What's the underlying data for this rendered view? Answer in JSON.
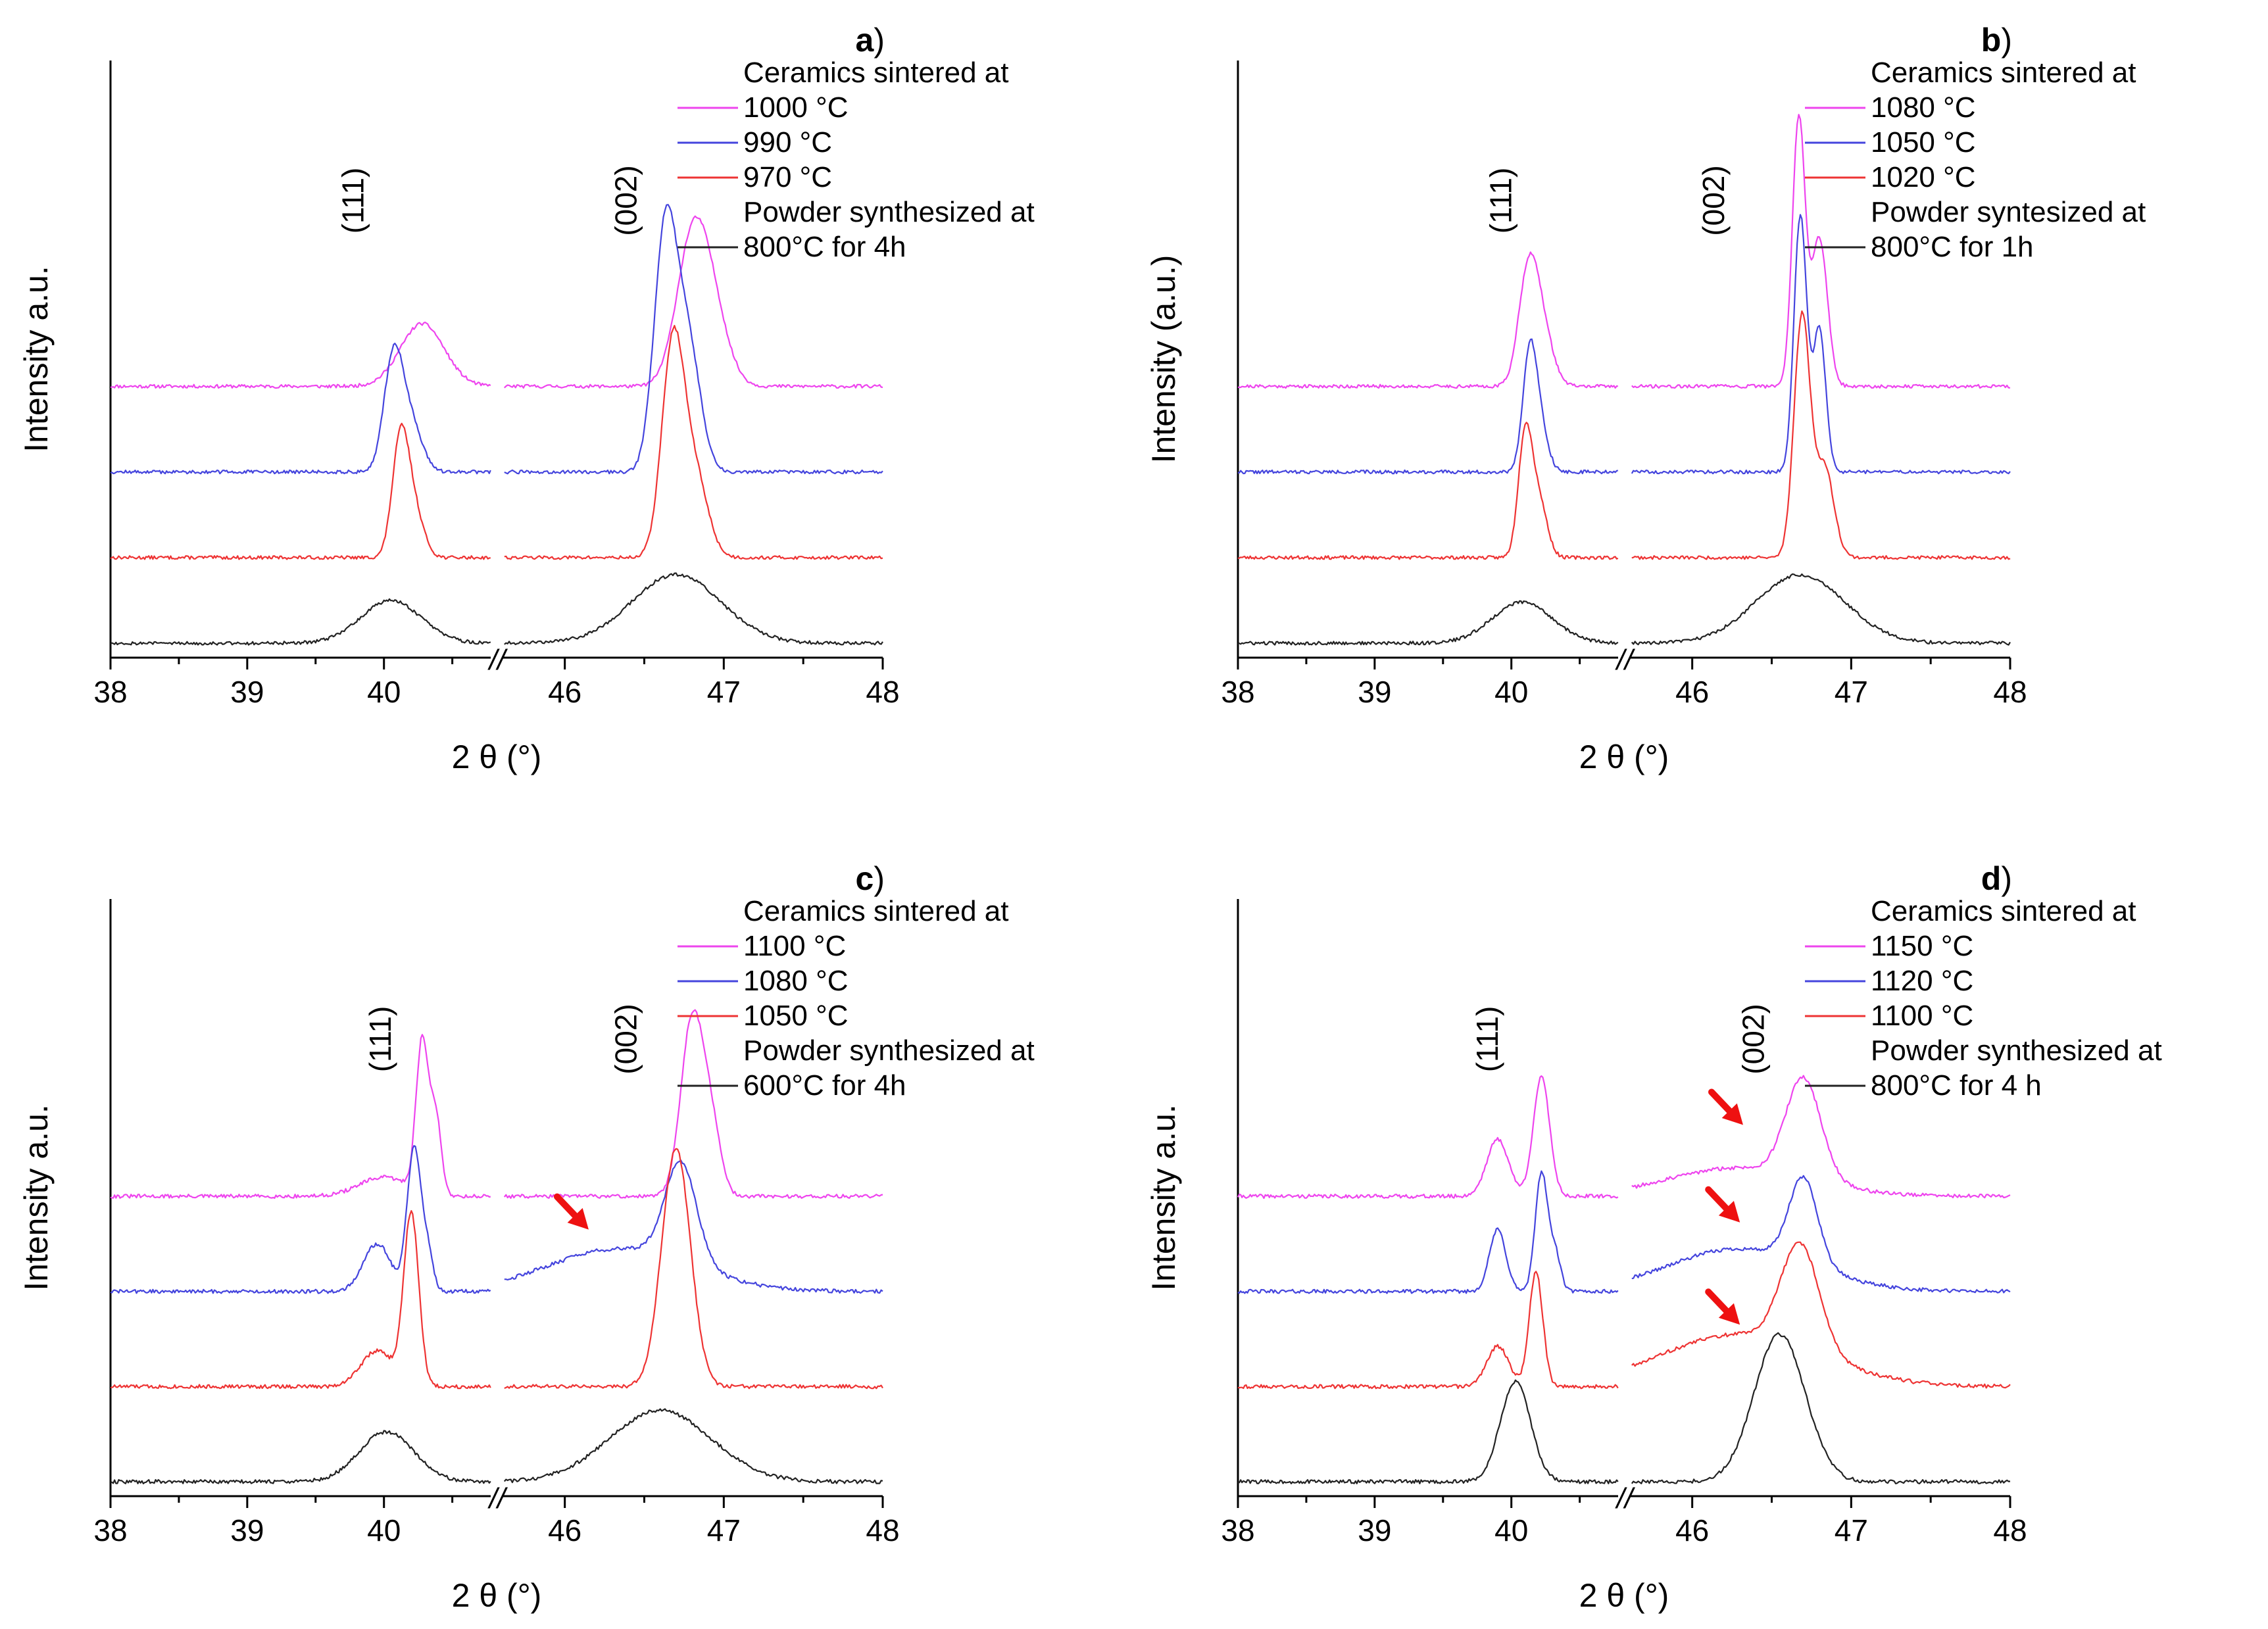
{
  "figure": {
    "axis_break_marker": "//"
  },
  "colors": {
    "magenta": "#ee44ee",
    "blue": "#4444dd",
    "red": "#ee3333",
    "black": "#222222",
    "arrow": "#ee1111"
  },
  "chart_data": [
    {
      "panel": "a",
      "panel_letter": "a",
      "type": "line",
      "xlabel": "2 θ (°)",
      "ylabel": "Intensity a.u.",
      "x_segments": [
        {
          "range": [
            38,
            40.8
          ],
          "ticks": [
            38,
            39,
            40
          ]
        },
        {
          "range": [
            45.6,
            48
          ],
          "ticks": [
            46,
            47,
            48
          ]
        }
      ],
      "y_range": [
        0,
        10
      ],
      "legend": {
        "header": "Ceramics sintered at",
        "sub_header": "Powder synthesized at"
      },
      "peak_labels": [
        {
          "text": "(111)",
          "x": 39.85
        },
        {
          "text": "(002)",
          "x": 46.45
        }
      ],
      "arrows": [],
      "series": [
        {
          "name": "1000 °C",
          "color": "magenta",
          "baseline": 4.5,
          "noise": 0.03,
          "seed": 11,
          "peaks": [
            {
              "x": 40.28,
              "h": 1.1,
              "w": 0.16
            },
            {
              "x": 46.8,
              "h": 2.4,
              "w": 0.1
            },
            {
              "x": 46.93,
              "h": 1.1,
              "w": 0.1
            }
          ]
        },
        {
          "name": "990 °C",
          "color": "blue",
          "baseline": 3.0,
          "noise": 0.03,
          "seed": 12,
          "peaks": [
            {
              "x": 40.07,
              "h": 2.0,
              "w": 0.07
            },
            {
              "x": 40.2,
              "h": 0.8,
              "w": 0.08
            },
            {
              "x": 46.63,
              "h": 4.1,
              "w": 0.07
            },
            {
              "x": 46.77,
              "h": 2.3,
              "w": 0.08
            }
          ]
        },
        {
          "name": "970 °C",
          "color": "red",
          "baseline": 1.5,
          "noise": 0.03,
          "seed": 13,
          "peaks": [
            {
              "x": 40.12,
              "h": 2.0,
              "w": 0.06
            },
            {
              "x": 40.22,
              "h": 0.8,
              "w": 0.07
            },
            {
              "x": 46.68,
              "h": 3.7,
              "w": 0.07
            },
            {
              "x": 46.82,
              "h": 1.4,
              "w": 0.08
            }
          ]
        },
        {
          "name": "800°C for 4h",
          "color": "black",
          "baseline": 0.0,
          "noise": 0.03,
          "seed": 14,
          "peaks": [
            {
              "x": 40.05,
              "h": 0.75,
              "w": 0.22
            },
            {
              "x": 46.7,
              "h": 1.2,
              "w": 0.28
            }
          ]
        }
      ]
    },
    {
      "panel": "b",
      "panel_letter": "b",
      "type": "line",
      "xlabel": "2 θ (°)",
      "ylabel": "Intensity (a.u.)",
      "x_segments": [
        {
          "range": [
            38,
            40.8
          ],
          "ticks": [
            38,
            39,
            40
          ]
        },
        {
          "range": [
            45.6,
            48
          ],
          "ticks": [
            46,
            47,
            48
          ]
        }
      ],
      "y_range": [
        0,
        10
      ],
      "legend": {
        "header": "Ceramics sintered at",
        "sub_header": "Powder syntesized at"
      },
      "peak_labels": [
        {
          "text": "(111)",
          "x": 40.0
        },
        {
          "text": "(002)",
          "x": 46.2
        }
      ],
      "arrows": [],
      "series": [
        {
          "name": "1080 °C",
          "color": "magenta",
          "baseline": 4.5,
          "noise": 0.03,
          "seed": 21,
          "peaks": [
            {
              "x": 40.12,
              "h": 1.8,
              "w": 0.07
            },
            {
              "x": 40.22,
              "h": 1.0,
              "w": 0.08
            },
            {
              "x": 46.67,
              "h": 4.7,
              "w": 0.04
            },
            {
              "x": 46.8,
              "h": 2.6,
              "w": 0.05
            }
          ]
        },
        {
          "name": "1050 °C",
          "color": "blue",
          "baseline": 3.0,
          "noise": 0.03,
          "seed": 22,
          "peaks": [
            {
              "x": 40.13,
              "h": 1.8,
              "w": 0.05
            },
            {
              "x": 40.2,
              "h": 0.9,
              "w": 0.06
            },
            {
              "x": 46.68,
              "h": 4.5,
              "w": 0.04
            },
            {
              "x": 46.8,
              "h": 2.5,
              "w": 0.04
            }
          ]
        },
        {
          "name": "1020 °C",
          "color": "red",
          "baseline": 1.5,
          "noise": 0.03,
          "seed": 23,
          "peaks": [
            {
              "x": 40.1,
              "h": 2.1,
              "w": 0.05
            },
            {
              "x": 40.2,
              "h": 1.0,
              "w": 0.06
            },
            {
              "x": 46.69,
              "h": 4.2,
              "w": 0.05
            },
            {
              "x": 46.83,
              "h": 1.6,
              "w": 0.06
            }
          ]
        },
        {
          "name": "800°C for 1h",
          "color": "black",
          "baseline": 0.0,
          "noise": 0.03,
          "seed": 24,
          "peaks": [
            {
              "x": 40.08,
              "h": 0.72,
              "w": 0.22
            },
            {
              "x": 46.68,
              "h": 1.2,
              "w": 0.28
            }
          ]
        }
      ]
    },
    {
      "panel": "c",
      "panel_letter": "c",
      "type": "line",
      "xlabel": "2 θ (°)",
      "ylabel": "Intensity a.u.",
      "x_segments": [
        {
          "range": [
            38,
            40.8
          ],
          "ticks": [
            38,
            39,
            40
          ]
        },
        {
          "range": [
            45.6,
            48
          ],
          "ticks": [
            46,
            47,
            48
          ]
        }
      ],
      "y_range": [
        0,
        12
      ],
      "legend": {
        "header": "Ceramics sintered at",
        "sub_header": "Powder synthesized at"
      },
      "peak_labels": [
        {
          "text": "(111)",
          "x": 40.05
        },
        {
          "text": "(002)",
          "x": 46.45
        }
      ],
      "arrows": [
        {
          "x": 46.15,
          "y": 5.3
        }
      ],
      "series": [
        {
          "name": "1100 °C",
          "color": "magenta",
          "baseline": 6.0,
          "noise": 0.04,
          "seed": 31,
          "peaks": [
            {
              "x": 40.0,
              "h": 0.4,
              "w": 0.18
            },
            {
              "x": 40.28,
              "h": 3.2,
              "w": 0.045
            },
            {
              "x": 40.38,
              "h": 1.6,
              "w": 0.04
            },
            {
              "x": 46.8,
              "h": 3.7,
              "w": 0.07
            },
            {
              "x": 46.92,
              "h": 1.4,
              "w": 0.06
            }
          ]
        },
        {
          "name": "1080 °C",
          "color": "blue",
          "baseline": 4.0,
          "noise": 0.04,
          "seed": 32,
          "peaks": [
            {
              "x": 39.95,
              "h": 1.0,
              "w": 0.1
            },
            {
              "x": 40.22,
              "h": 3.0,
              "w": 0.05
            },
            {
              "x": 40.32,
              "h": 0.8,
              "w": 0.04
            },
            {
              "x": 46.35,
              "h": 0.9,
              "w": 0.45
            },
            {
              "x": 46.73,
              "h": 2.1,
              "w": 0.1
            }
          ]
        },
        {
          "name": "1050 °C",
          "color": "red",
          "baseline": 2.0,
          "noise": 0.04,
          "seed": 33,
          "peaks": [
            {
              "x": 39.95,
              "h": 0.75,
              "w": 0.12
            },
            {
              "x": 40.2,
              "h": 3.6,
              "w": 0.055
            },
            {
              "x": 46.7,
              "h": 5.0,
              "w": 0.09
            }
          ]
        },
        {
          "name": "600°C for 4h",
          "color": "black",
          "baseline": 0.0,
          "noise": 0.04,
          "seed": 34,
          "peaks": [
            {
              "x": 40.02,
              "h": 1.05,
              "w": 0.2
            },
            {
              "x": 46.6,
              "h": 1.5,
              "w": 0.32
            }
          ]
        }
      ]
    },
    {
      "panel": "d",
      "panel_letter": "d",
      "type": "line",
      "xlabel": "2 θ (°)",
      "ylabel": "Intensity a.u.",
      "x_segments": [
        {
          "range": [
            38,
            40.8
          ],
          "ticks": [
            38,
            39,
            40
          ]
        },
        {
          "range": [
            45.6,
            48
          ],
          "ticks": [
            46,
            47,
            48
          ]
        }
      ],
      "y_range": [
        0,
        12
      ],
      "legend": {
        "header": "Ceramics sintered at",
        "sub_header": "Powder synthesized at"
      },
      "peak_labels": [
        {
          "text": "(111)",
          "x": 39.9
        },
        {
          "text": "(002)",
          "x": 46.45
        }
      ],
      "arrows": [
        {
          "x": 46.32,
          "y": 7.5
        },
        {
          "x": 46.3,
          "y": 5.45
        },
        {
          "x": 46.3,
          "y": 3.3
        }
      ],
      "series": [
        {
          "name": "1150 °C",
          "color": "magenta",
          "baseline": 6.0,
          "noise": 0.04,
          "seed": 41,
          "peaks": [
            {
              "x": 39.9,
              "h": 1.2,
              "w": 0.08
            },
            {
              "x": 40.22,
              "h": 2.5,
              "w": 0.06
            },
            {
              "x": 46.3,
              "h": 0.6,
              "w": 0.45
            },
            {
              "x": 46.7,
              "h": 2.1,
              "w": 0.11
            }
          ]
        },
        {
          "name": "1120 °C",
          "color": "blue",
          "baseline": 4.0,
          "noise": 0.04,
          "seed": 42,
          "peaks": [
            {
              "x": 39.9,
              "h": 1.3,
              "w": 0.06
            },
            {
              "x": 40.22,
              "h": 2.5,
              "w": 0.045
            },
            {
              "x": 40.32,
              "h": 0.8,
              "w": 0.04
            },
            {
              "x": 46.3,
              "h": 0.9,
              "w": 0.45
            },
            {
              "x": 46.7,
              "h": 1.8,
              "w": 0.09
            }
          ]
        },
        {
          "name": "1100 °C",
          "color": "red",
          "baseline": 2.0,
          "noise": 0.04,
          "seed": 43,
          "peaks": [
            {
              "x": 39.9,
              "h": 0.85,
              "w": 0.08
            },
            {
              "x": 40.18,
              "h": 2.4,
              "w": 0.05
            },
            {
              "x": 46.3,
              "h": 1.1,
              "w": 0.5
            },
            {
              "x": 46.68,
              "h": 2.2,
              "w": 0.12
            }
          ]
        },
        {
          "name": "800°C for 4 h",
          "color": "black",
          "baseline": 0.0,
          "noise": 0.04,
          "seed": 44,
          "peaks": [
            {
              "x": 40.03,
              "h": 2.1,
              "w": 0.11
            },
            {
              "x": 46.55,
              "h": 3.1,
              "w": 0.16
            }
          ]
        }
      ]
    }
  ]
}
